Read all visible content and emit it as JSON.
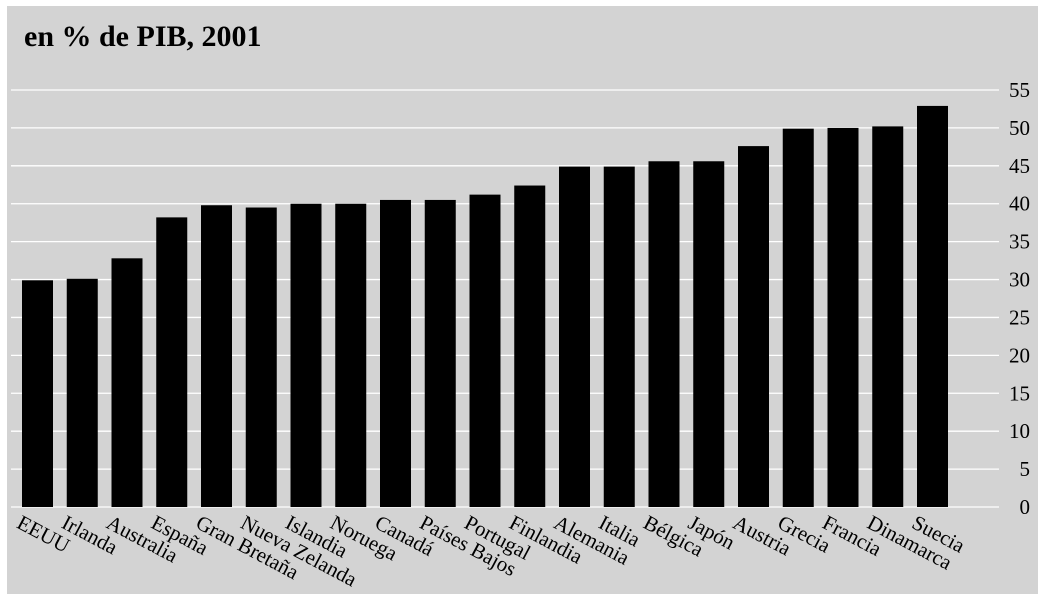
{
  "chart_data": {
    "type": "bar",
    "title": "en % de PIB, 2001",
    "categories": [
      "EEUU",
      "Irlanda",
      "Australia",
      "España",
      "Gran Bretaña",
      "Nueva Zelanda",
      "Islandia",
      "Noruega",
      "Canadá",
      "Países Bajos",
      "Portugal",
      "Finlandia",
      "Alemania",
      "Italia",
      "Bélgica",
      "Japón",
      "Austria",
      "Grecia",
      "Francia",
      "Dinamarca",
      "Suecia"
    ],
    "values": [
      29.9,
      30.1,
      32.8,
      38.2,
      39.8,
      39.5,
      40.0,
      40.0,
      40.5,
      40.5,
      41.2,
      42.4,
      44.9,
      44.9,
      45.6,
      45.6,
      47.6,
      49.9,
      50.0,
      50.2,
      52.9
    ],
    "ylim": [
      0,
      55
    ],
    "yticks": [
      0,
      5,
      10,
      15,
      20,
      25,
      30,
      35,
      40,
      45,
      50,
      55
    ],
    "xlabel": "",
    "ylabel": "",
    "grid": true,
    "colors": {
      "bar": "#000000",
      "background": "#d3d3d3",
      "grid": "#ffffff"
    }
  }
}
